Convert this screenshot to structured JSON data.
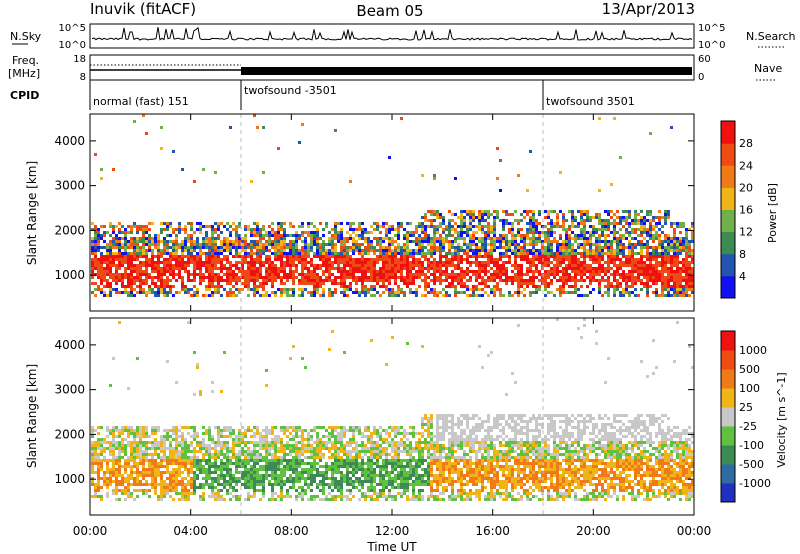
{
  "header": {
    "site": "Inuvik (fitACF)",
    "beam": "Beam 05",
    "date": "13/Apr/2013"
  },
  "noise_panel": {
    "left_label": "N.Sky",
    "right_label": "N.Search",
    "left_ticks": [
      "10^5",
      "10^0"
    ],
    "right_ticks": [
      "10^5",
      "10^0"
    ]
  },
  "freq_panel": {
    "left_label_top": "Freq.",
    "left_label_unit": "[MHz]",
    "right_label": "Nave",
    "left_ticks": [
      "18",
      "8"
    ],
    "right_ticks": [
      "60",
      "0"
    ]
  },
  "cpid": {
    "label": "CPID",
    "segments": [
      {
        "start_hour": 0,
        "text": "normal (fast) 151"
      },
      {
        "start_hour": 6,
        "text": "twofsound -3501"
      },
      {
        "start_hour": 18,
        "text": "twofsound 3501"
      }
    ]
  },
  "x_axis": {
    "label": "Time UT",
    "ticks": [
      "00:00",
      "04:00",
      "08:00",
      "12:00",
      "16:00",
      "20:00",
      "00:00"
    ],
    "range_hours": [
      0,
      24
    ]
  },
  "chart_data": [
    {
      "type": "heatmap",
      "title": "",
      "ylabel": "Slant Range [km]",
      "yticks": [
        "1000",
        "2000",
        "3000",
        "4000"
      ],
      "ylim": [
        200,
        4600
      ],
      "colorbar": {
        "label": "Power [dB]",
        "ticks": [
          "4",
          "8",
          "12",
          "16",
          "20",
          "24",
          "28"
        ],
        "colors": [
          "#1010f0",
          "#2255b0",
          "#3e8a55",
          "#6fb04a",
          "#f0b418",
          "#f07a18",
          "#f04a14",
          "#f01010"
        ]
      }
    },
    {
      "type": "heatmap",
      "title": "",
      "ylabel": "Slant Range [km]",
      "yticks": [
        "1000",
        "2000",
        "3000",
        "4000"
      ],
      "ylim": [
        200,
        4600
      ],
      "colorbar": {
        "label": "Velocity [m s^-1]",
        "ticks": [
          "1000",
          "500",
          "100",
          "25",
          "-25",
          "-100",
          "-500",
          "-1000"
        ],
        "colors": [
          "#2030c0",
          "#2f6aa0",
          "#3e8a55",
          "#60c040",
          "#c8c8c8",
          "#f0b418",
          "#f07a18",
          "#f04a14",
          "#f01010"
        ]
      }
    }
  ]
}
